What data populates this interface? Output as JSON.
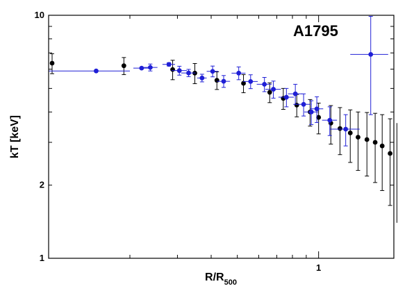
{
  "chart_data": {
    "type": "scatter",
    "title": "A1795",
    "xlabel": "R/R",
    "xlabel_sub": "500",
    "ylabel": "kT [keV]",
    "x_scale": "log",
    "y_scale": "log",
    "xlim": [
      0.1,
      1.9
    ],
    "ylim": [
      1,
      10
    ],
    "x_ticks": [
      {
        "value": 1,
        "label": "1"
      }
    ],
    "y_ticks": [
      {
        "value": 1,
        "label": "1"
      },
      {
        "value": 2,
        "label": "2"
      },
      {
        "value": 10,
        "label": "10"
      }
    ],
    "grid": false,
    "legend": "none",
    "series": [
      {
        "color": "#000000",
        "points": [
          {
            "x": 0.103,
            "y": 6.35,
            "xerr": [
              0.0,
              0.0
            ],
            "yerr": [
              0.6,
              0.6
            ]
          },
          {
            "x": 0.19,
            "y": 6.2,
            "xerr": [
              0.0,
              0.0
            ],
            "yerr": [
              0.5,
              0.5
            ]
          },
          {
            "x": 0.288,
            "y": 5.98,
            "xerr": [
              0.0,
              0.0
            ],
            "yerr": [
              0.55,
              0.55
            ]
          },
          {
            "x": 0.348,
            "y": 5.78,
            "xerr": [
              0.0,
              0.0
            ],
            "yerr": [
              0.55,
              0.55
            ]
          },
          {
            "x": 0.42,
            "y": 5.4,
            "xerr": [
              0.0,
              0.0
            ],
            "yerr": [
              0.45,
              0.45
            ]
          },
          {
            "x": 0.527,
            "y": 5.25,
            "xerr": [
              0.0,
              0.0
            ],
            "yerr": [
              0.45,
              0.45
            ]
          },
          {
            "x": 0.659,
            "y": 4.82,
            "xerr": [
              0.0,
              0.0
            ],
            "yerr": [
              0.45,
              0.45
            ]
          },
          {
            "x": 0.74,
            "y": 4.55,
            "xerr": [
              0.0,
              0.0
            ],
            "yerr": [
              0.45,
              0.45
            ]
          },
          {
            "x": 0.83,
            "y": 4.27,
            "xerr": [
              0.0,
              0.0
            ],
            "yerr": [
              0.45,
              0.45
            ]
          },
          {
            "x": 0.93,
            "y": 4.0,
            "xerr": [
              0.0,
              0.0
            ],
            "yerr": [
              0.5,
              0.5
            ]
          },
          {
            "x": 1.0,
            "y": 3.8,
            "xerr": [
              0.0,
              0.0
            ],
            "yerr": [
              0.55,
              0.55
            ]
          },
          {
            "x": 1.11,
            "y": 3.6,
            "xerr": [
              0.0,
              0.0
            ],
            "yerr": [
              0.65,
              0.65
            ]
          },
          {
            "x": 1.2,
            "y": 3.42,
            "xerr": [
              0.0,
              0.0
            ],
            "yerr": [
              0.75,
              0.75
            ]
          },
          {
            "x": 1.31,
            "y": 3.28,
            "xerr": [
              0.0,
              0.0
            ],
            "yerr": [
              0.8,
              0.8
            ]
          },
          {
            "x": 1.4,
            "y": 3.15,
            "xerr": [
              0.0,
              0.0
            ],
            "yerr": [
              0.85,
              0.85
            ]
          },
          {
            "x": 1.51,
            "y": 3.08,
            "xerr": [
              0.0,
              0.0
            ],
            "yerr": [
              0.9,
              0.9
            ]
          },
          {
            "x": 1.62,
            "y": 3.0,
            "xerr": [
              0.0,
              0.0
            ],
            "yerr": [
              0.95,
              0.95
            ]
          },
          {
            "x": 1.72,
            "y": 2.9,
            "xerr": [
              0.0,
              0.0
            ],
            "yerr": [
              1.0,
              1.0
            ]
          },
          {
            "x": 1.84,
            "y": 2.7,
            "xerr": [
              0.0,
              0.0
            ],
            "yerr": [
              1.05,
              1.05
            ]
          },
          {
            "x": 1.95,
            "y": 2.5,
            "xerr": [
              0.0,
              0.0
            ],
            "yerr": [
              1.1,
              1.1
            ]
          }
        ]
      },
      {
        "color": "#1f1fd6",
        "points": [
          {
            "x": 0.15,
            "y": 5.9,
            "xerr": [
              0.05,
              0.05
            ],
            "yerr": [
              0.0,
              0.0
            ]
          },
          {
            "x": 0.221,
            "y": 6.06,
            "xerr": [
              0.015,
              0.015
            ],
            "yerr": [
              0.0,
              0.0
            ]
          },
          {
            "x": 0.238,
            "y": 6.1,
            "xerr": [
              0.015,
              0.015
            ],
            "yerr": [
              0.2,
              0.2
            ]
          },
          {
            "x": 0.279,
            "y": 6.28,
            "xerr": [
              0.015,
              0.015
            ],
            "yerr": [
              0.1,
              0.1
            ]
          },
          {
            "x": 0.305,
            "y": 5.92,
            "xerr": [
              0.02,
              0.02
            ],
            "yerr": [
              0.25,
              0.25
            ]
          },
          {
            "x": 0.33,
            "y": 5.79,
            "xerr": [
              0.02,
              0.02
            ],
            "yerr": [
              0.2,
              0.2
            ]
          },
          {
            "x": 0.37,
            "y": 5.52,
            "xerr": [
              0.015,
              0.015
            ],
            "yerr": [
              0.2,
              0.2
            ]
          },
          {
            "x": 0.405,
            "y": 5.88,
            "xerr": [
              0.02,
              0.02
            ],
            "yerr": [
              0.3,
              0.3
            ]
          },
          {
            "x": 0.445,
            "y": 5.35,
            "xerr": [
              0.025,
              0.025
            ],
            "yerr": [
              0.3,
              0.3
            ]
          },
          {
            "x": 0.506,
            "y": 5.78,
            "xerr": [
              0.03,
              0.03
            ],
            "yerr": [
              0.35,
              0.35
            ]
          },
          {
            "x": 0.56,
            "y": 5.34,
            "xerr": [
              0.035,
              0.035
            ],
            "yerr": [
              0.35,
              0.35
            ]
          },
          {
            "x": 0.63,
            "y": 5.2,
            "xerr": [
              0.04,
              0.04
            ],
            "yerr": [
              0.35,
              0.35
            ]
          },
          {
            "x": 0.68,
            "y": 4.96,
            "xerr": [
              0.045,
              0.045
            ],
            "yerr": [
              0.4,
              0.4
            ]
          },
          {
            "x": 0.76,
            "y": 4.6,
            "xerr": [
              0.05,
              0.05
            ],
            "yerr": [
              0.4,
              0.4
            ]
          },
          {
            "x": 0.82,
            "y": 4.75,
            "xerr": [
              0.05,
              0.05
            ],
            "yerr": [
              0.45,
              0.45
            ]
          },
          {
            "x": 0.88,
            "y": 4.3,
            "xerr": [
              0.055,
              0.055
            ],
            "yerr": [
              0.45,
              0.45
            ]
          },
          {
            "x": 0.94,
            "y": 4.0,
            "xerr": [
              0.055,
              0.055
            ],
            "yerr": [
              0.45,
              0.45
            ]
          },
          {
            "x": 0.985,
            "y": 4.12,
            "xerr": [
              0.055,
              0.055
            ],
            "yerr": [
              0.5,
              0.5
            ]
          },
          {
            "x": 1.1,
            "y": 3.7,
            "xerr": [
              0.07,
              0.07
            ],
            "yerr": [
              0.5,
              0.5
            ]
          },
          {
            "x": 1.26,
            "y": 3.4,
            "xerr": [
              0.16,
              0.16
            ],
            "yerr": [
              0.5,
              0.5
            ]
          },
          {
            "x": 1.56,
            "y": 6.9,
            "xerr": [
              0.25,
              0.25
            ],
            "yerr": [
              3.0,
              3.0
            ]
          }
        ]
      }
    ]
  }
}
